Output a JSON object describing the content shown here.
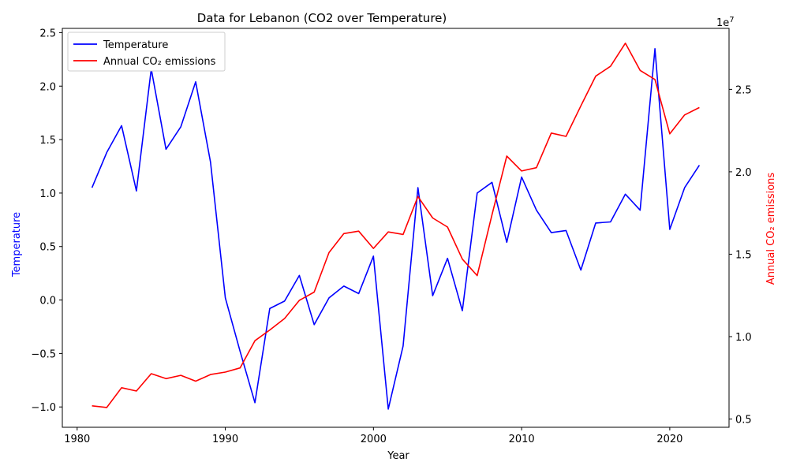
{
  "chart_data": {
    "type": "line",
    "title": "Data for Lebanon (CO2 over Temperature)",
    "xlabel": "Year",
    "ylabel_left": "Temperature",
    "ylabel_right": "Annual CO₂ emissions",
    "right_axis_multiplier": "1e7",
    "xlim": [
      1979,
      2024
    ],
    "ylim_left": [
      -1.19,
      2.54
    ],
    "ylim_right": [
      4500000,
      28700000
    ],
    "x_ticks": [
      1980,
      1990,
      2000,
      2010,
      2020
    ],
    "y_ticks_left": [
      -1.0,
      -0.5,
      0.0,
      0.5,
      1.0,
      1.5,
      2.0,
      2.5
    ],
    "y_ticks_right": [
      0.5,
      1.0,
      1.5,
      2.0,
      2.5
    ],
    "legend_position": "top-left",
    "grid": false,
    "x": [
      1981,
      1982,
      1983,
      1984,
      1985,
      1986,
      1987,
      1988,
      1989,
      1990,
      1991,
      1992,
      1993,
      1994,
      1995,
      1996,
      1997,
      1998,
      1999,
      2000,
      2001,
      2002,
      2003,
      2004,
      2005,
      2006,
      2007,
      2008,
      2009,
      2010,
      2011,
      2012,
      2013,
      2014,
      2015,
      2016,
      2017,
      2018,
      2019,
      2020,
      2021,
      2022
    ],
    "series": [
      {
        "name": "Temperature",
        "axis": "left",
        "color": "#0000ff",
        "values": [
          1.05,
          1.38,
          1.63,
          1.02,
          2.16,
          1.41,
          1.62,
          2.04,
          1.29,
          0.02,
          -0.48,
          -0.96,
          -0.08,
          -0.01,
          0.23,
          -0.23,
          0.02,
          0.13,
          0.06,
          0.41,
          -1.02,
          -0.43,
          1.05,
          0.04,
          0.39,
          -0.1,
          1.0,
          1.1,
          0.54,
          1.15,
          0.84,
          0.63,
          0.65,
          0.28,
          0.72,
          0.73,
          0.99,
          0.84,
          2.35,
          0.66,
          1.05,
          1.26
        ]
      },
      {
        "name": "Annual CO₂ emissions",
        "axis": "right",
        "color": "#ff0000",
        "values": [
          5800000,
          5700000,
          6900000,
          6700000,
          7750000,
          7450000,
          7650000,
          7300000,
          7700000,
          7850000,
          8100000,
          9750000,
          10400000,
          11100000,
          12200000,
          12700000,
          15100000,
          16250000,
          16400000,
          15350000,
          16350000,
          16200000,
          18500000,
          17200000,
          16650000,
          14700000,
          13700000,
          17400000,
          20950000,
          20050000,
          20250000,
          22350000,
          22150000,
          24000000,
          25800000,
          26400000,
          27800000,
          26150000,
          25600000,
          22300000,
          23450000,
          23900000
        ]
      }
    ]
  }
}
